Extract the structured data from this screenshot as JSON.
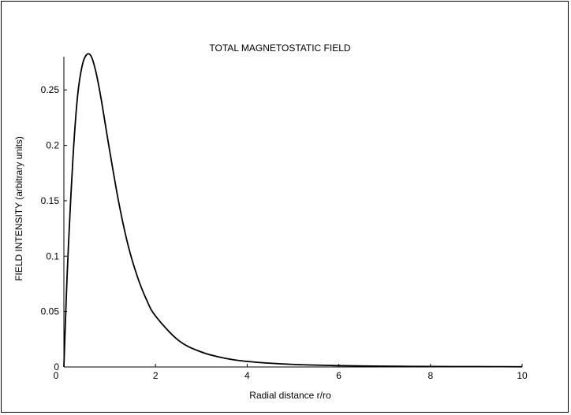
{
  "chart_data": {
    "type": "line",
    "title": "TOTAL MAGNETOSTATIC FIELD",
    "xlabel": "Radial distance r/ro",
    "ylabel": "FIELD INTENSITY (arbitrary units)",
    "xlim": [
      0,
      10
    ],
    "ylim": [
      0,
      0.28
    ],
    "x_ticks": [
      {
        "value": 0,
        "label": "0"
      },
      {
        "value": 2,
        "label": "2"
      },
      {
        "value": 4,
        "label": "4"
      },
      {
        "value": 6,
        "label": "6"
      },
      {
        "value": 8,
        "label": "8"
      },
      {
        "value": 10,
        "label": "10"
      }
    ],
    "y_ticks": [
      {
        "value": 0,
        "label": "0"
      },
      {
        "value": 0.05,
        "label": "0.05"
      },
      {
        "value": 0.1,
        "label": "0.1"
      },
      {
        "value": 0.15,
        "label": "0.15"
      },
      {
        "value": 0.2,
        "label": "0.2"
      },
      {
        "value": 0.25,
        "label": "0.25"
      }
    ],
    "grid": false,
    "series": [
      {
        "color": "#000000",
        "x": [
          0,
          0.05,
          0.1,
          0.2,
          0.3,
          0.4,
          0.5,
          0.6,
          0.7,
          0.8,
          0.9,
          1.0,
          1.2,
          1.4,
          1.6,
          1.8,
          2.0,
          2.5,
          3.0,
          3.5,
          4.0,
          5.0,
          6.0,
          7.0,
          8.0,
          9.0,
          10.0
        ],
        "y": [
          0,
          0.06,
          0.11,
          0.19,
          0.245,
          0.272,
          0.282,
          0.28,
          0.266,
          0.245,
          0.22,
          0.195,
          0.148,
          0.11,
          0.082,
          0.061,
          0.046,
          0.024,
          0.0135,
          0.008,
          0.005,
          0.0023,
          0.0012,
          0.0007,
          0.0004,
          0.0003,
          0.0002
        ]
      }
    ]
  }
}
